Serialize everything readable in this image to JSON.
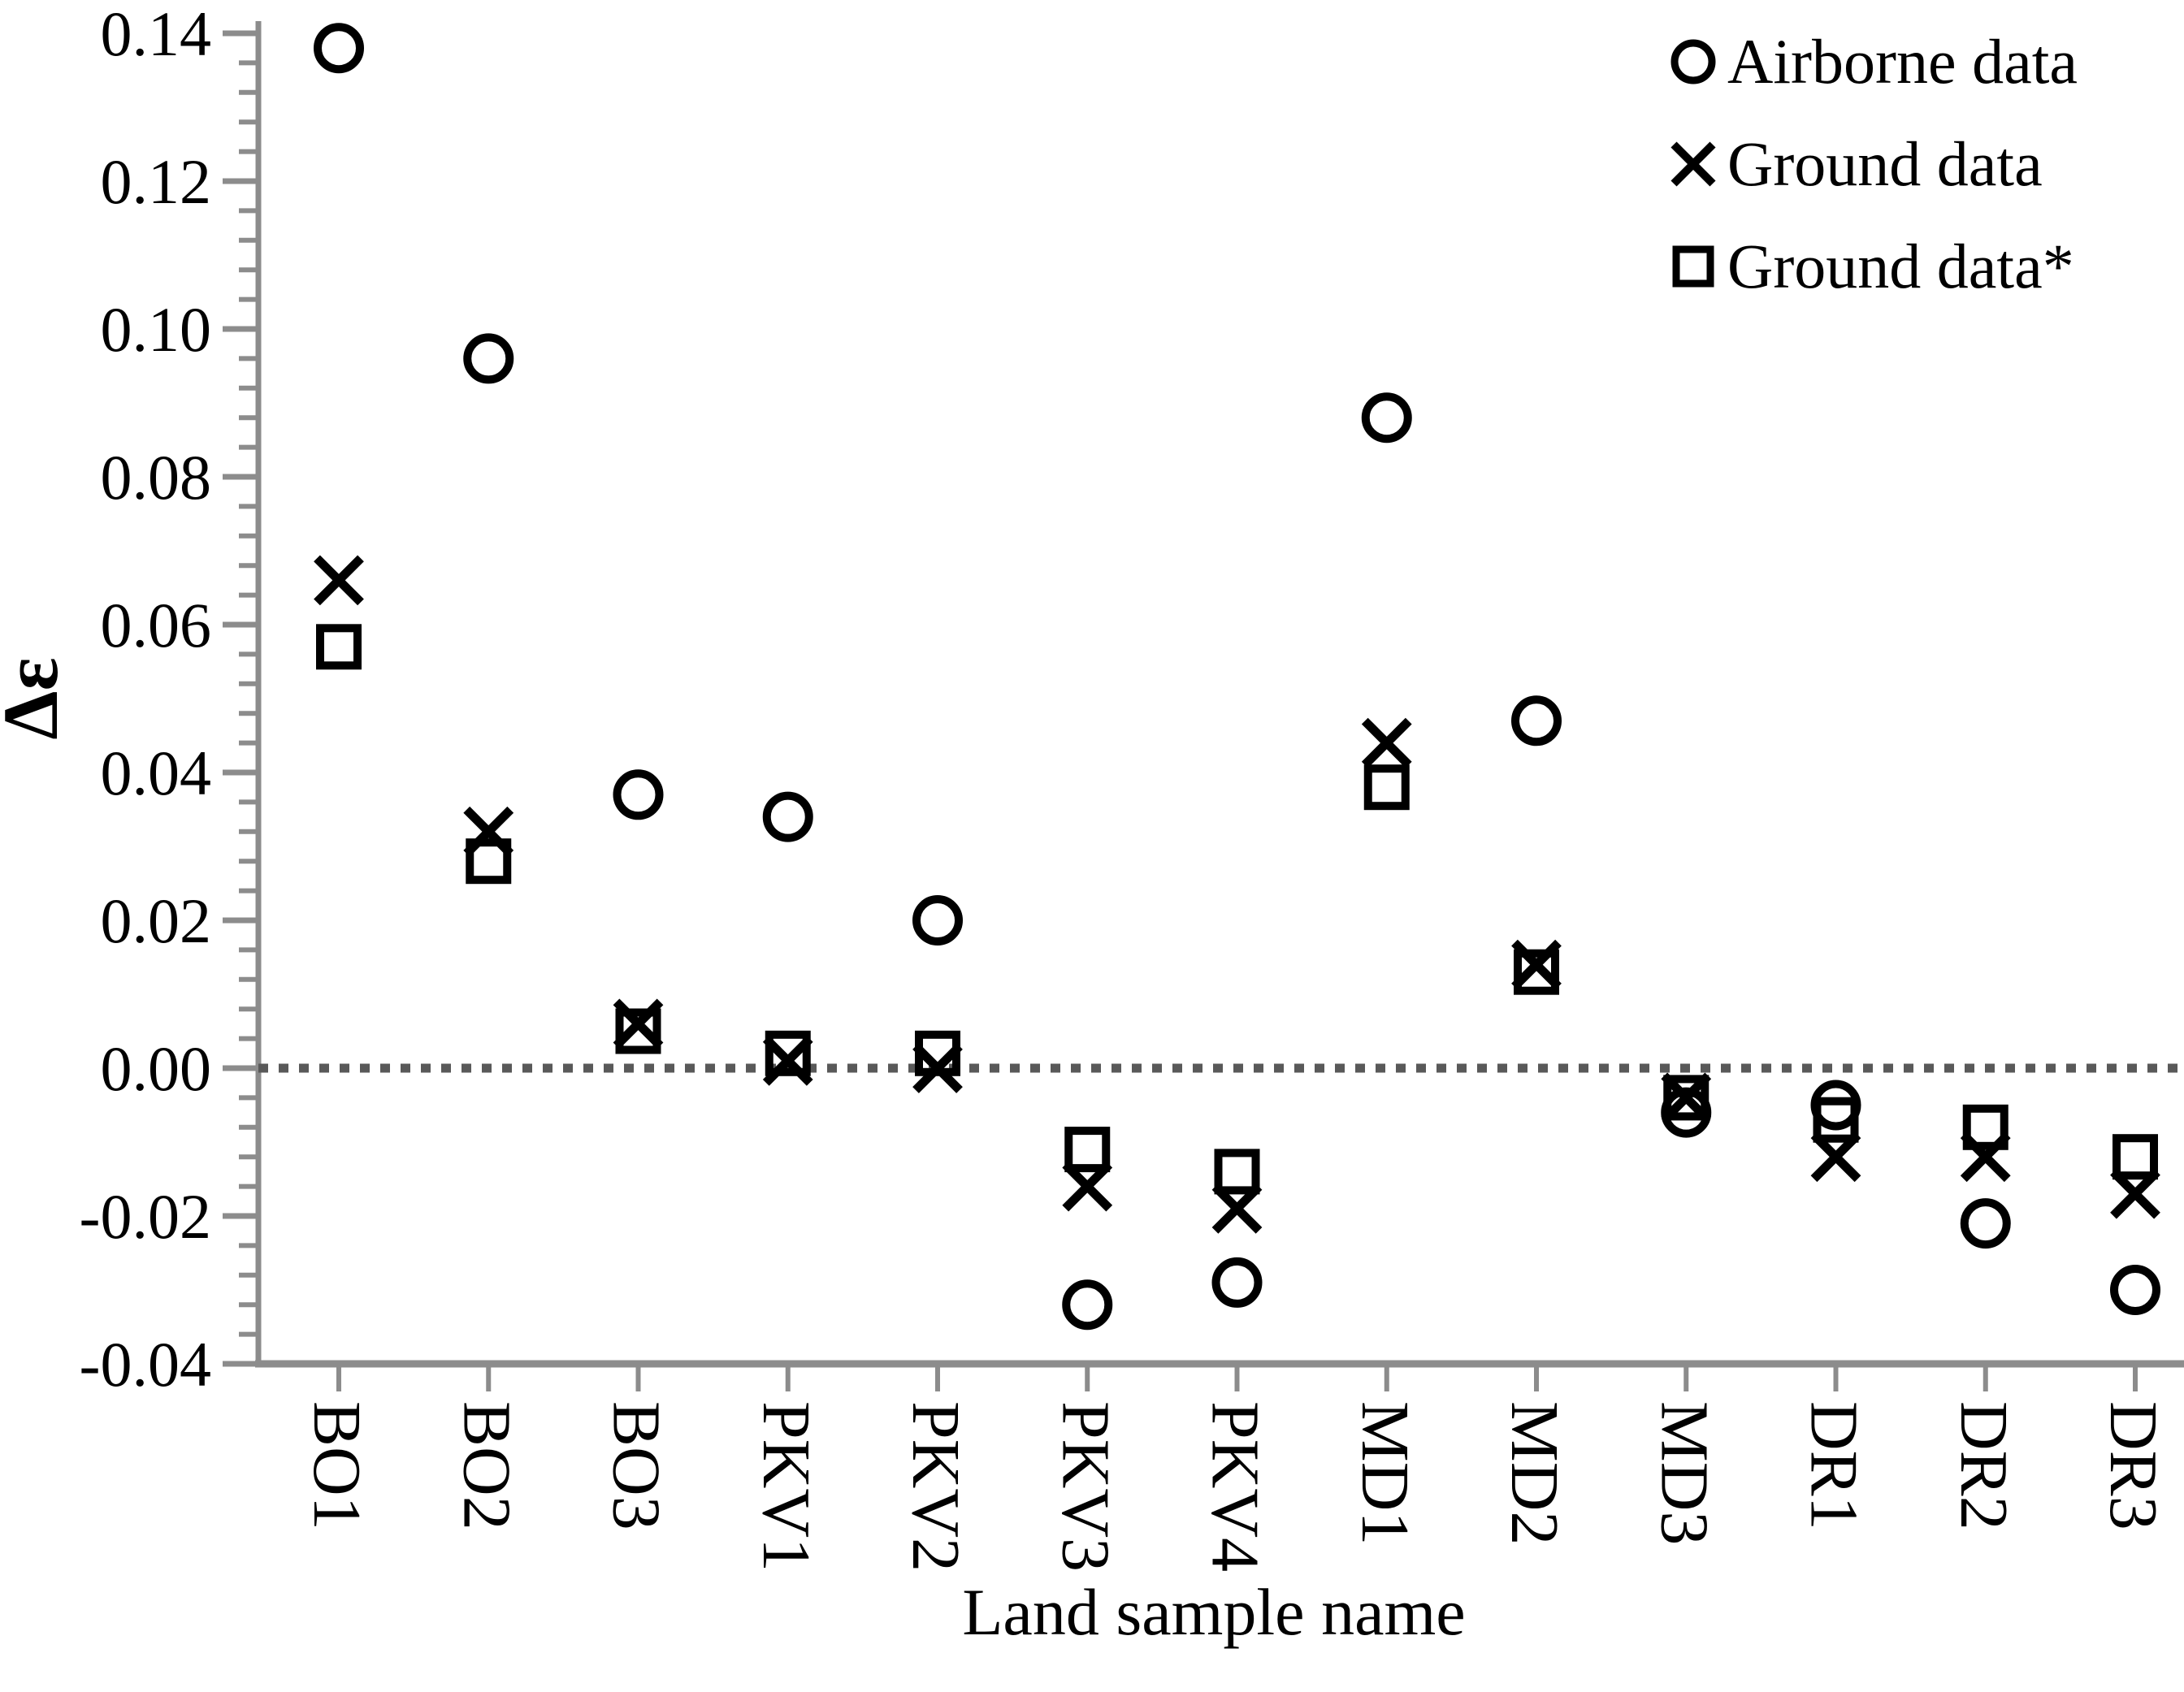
{
  "chart_data": {
    "type": "scatter",
    "title": "",
    "xlabel": "Land sample name",
    "ylabel": "Δε",
    "categories": [
      "BO1",
      "BO2",
      "BO3",
      "PKV1",
      "PKV2",
      "PKV3",
      "PKV4",
      "MD1",
      "MD2",
      "MD3",
      "DR1",
      "DR2",
      "DR3"
    ],
    "series": [
      {
        "name": "Airborne data",
        "marker": "circle",
        "values": [
          0.138,
          0.096,
          0.037,
          0.034,
          0.02,
          -0.032,
          -0.029,
          0.088,
          0.047,
          -0.006,
          -0.005,
          -0.021,
          -0.03
        ]
      },
      {
        "name": "Ground data",
        "marker": "x",
        "values": [
          0.066,
          0.032,
          0.006,
          0.001,
          0.0,
          -0.016,
          -0.019,
          0.044,
          0.014,
          -0.004,
          -0.012,
          -0.012,
          -0.017
        ]
      },
      {
        "name": "Ground data*",
        "marker": "square",
        "values": [
          0.057,
          0.028,
          0.005,
          0.002,
          0.002,
          -0.011,
          -0.014,
          0.038,
          0.013,
          -0.004,
          -0.007,
          -0.008,
          -0.012
        ]
      }
    ],
    "ylim": [
      -0.04,
      0.14
    ],
    "ytick_step": 0.02,
    "ytick_labels": [
      "0.14",
      "0.12",
      "0.10",
      "0.08",
      "0.06",
      "0.04",
      "0.02",
      "0.00",
      "-0.02",
      "-0.04"
    ],
    "minor_ticks_per_major": 5,
    "zero_line_dotted": true,
    "grid": false,
    "legend_position": "top-right",
    "marker_color": "#000000",
    "axis_color": "#8c8c8c",
    "zero_line_color": "#595959"
  }
}
